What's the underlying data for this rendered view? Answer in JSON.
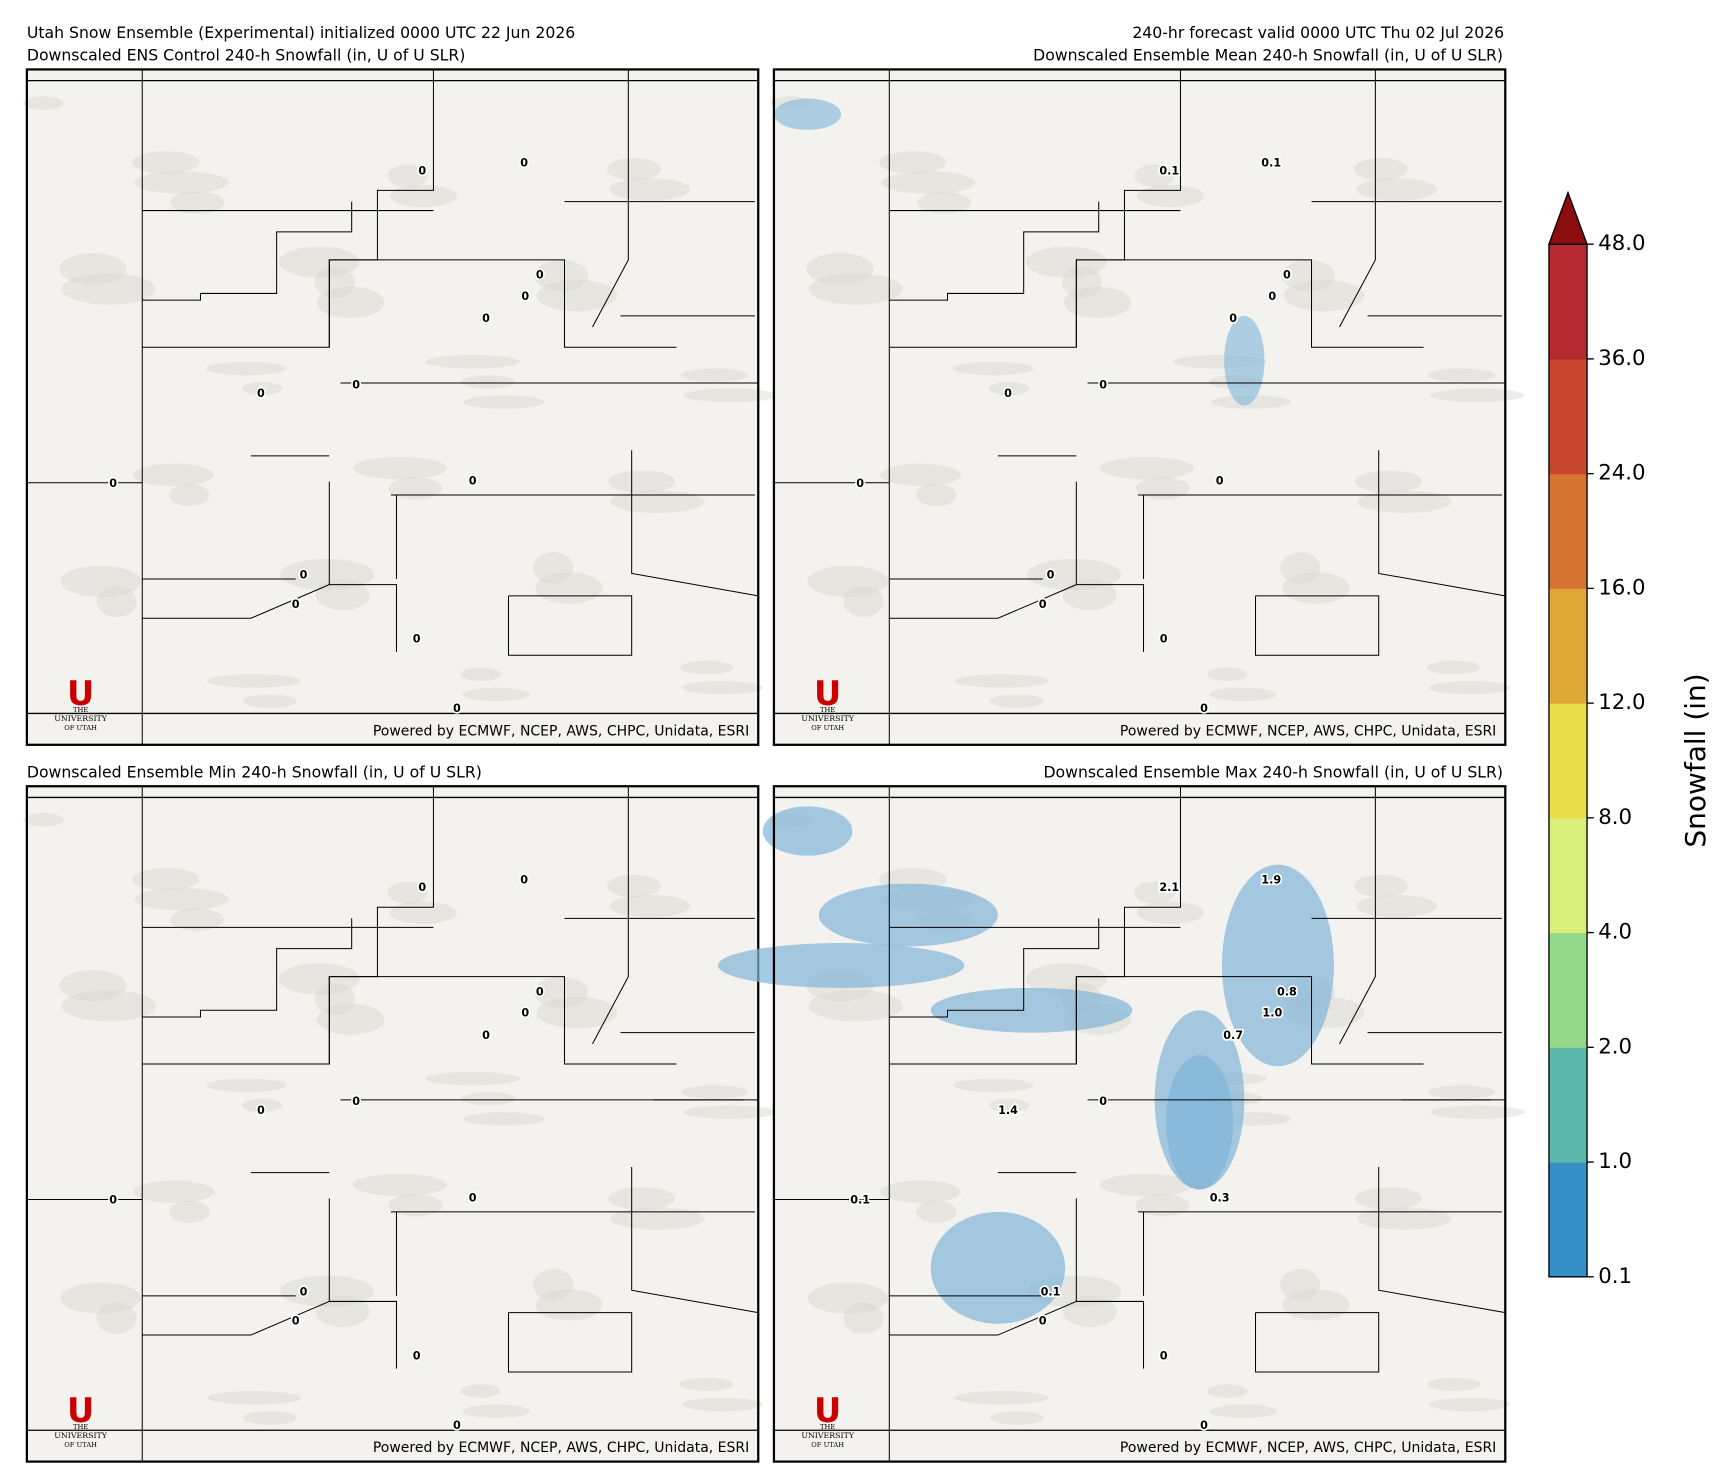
{
  "header": {
    "left": "Utah Snow Ensemble (Experimental) initialized 0000 UTC 22 Jun 2026",
    "right": "240-hr forecast valid 0000 UTC Thu 02 Jul 2026"
  },
  "panels": [
    {
      "title": "Downscaled ENS Control 240-h Snowfall (in, U of U SLR)",
      "labels": [
        "0",
        "0",
        "0",
        "0",
        "0",
        "0",
        "0",
        "0",
        "0",
        "0",
        "0",
        "0",
        "0"
      ]
    },
    {
      "title": "Downscaled Ensemble Mean 240-h Snowfall (in, U of U SLR)",
      "labels": [
        "0.1",
        "0.1",
        "0",
        "0",
        "0",
        "0",
        "0",
        "0",
        "0",
        "0",
        "0",
        "0",
        "0"
      ]
    },
    {
      "title": "Downscaled Ensemble Min 240-h Snowfall (in, U of U SLR)",
      "labels": [
        "0",
        "0",
        "0",
        "0",
        "0",
        "0",
        "0",
        "0",
        "0",
        "0",
        "0",
        "0",
        "0"
      ]
    },
    {
      "title": "Downscaled Ensemble Max 240-h Snowfall (in, U of U SLR)",
      "labels": [
        "2.1",
        "1.9",
        "0.8",
        "1.0",
        "0.7",
        "1.4",
        "0",
        "0.3",
        "0.1",
        "0.1",
        "0",
        "0",
        "0"
      ]
    }
  ],
  "footer": "Powered by ECMWF, NCEP, AWS, CHPC, Unidata, ESRI",
  "logo": {
    "letter": "U",
    "lines": [
      "THE",
      "UNIVERSITY",
      "OF UTAH"
    ]
  },
  "colorbar": {
    "label": "Snowfall (in)",
    "ticks": [
      0.1,
      {
        "value": 1,
        "label": "1.0"
      },
      {
        "value": 2,
        "label": "2.0"
      },
      {
        "value": 4,
        "label": "4.0"
      },
      {
        "value": 8,
        "label": "8.0"
      },
      {
        "value": 12,
        "label": "12.0"
      },
      {
        "value": 16,
        "label": "16.0"
      },
      {
        "value": 24,
        "label": "24.0"
      },
      {
        "value": 36,
        "label": "36.0"
      },
      {
        "value": 48,
        "label": "48.0"
      }
    ],
    "colors": [
      "#3690c8",
      "#5bb7aa",
      "#94d98a",
      "#d8f07a",
      "#e8dc48",
      "#e0a838",
      "#d87432",
      "#c8452e",
      "#b42a2e"
    ],
    "extend_color": "#8b0d0d"
  }
}
